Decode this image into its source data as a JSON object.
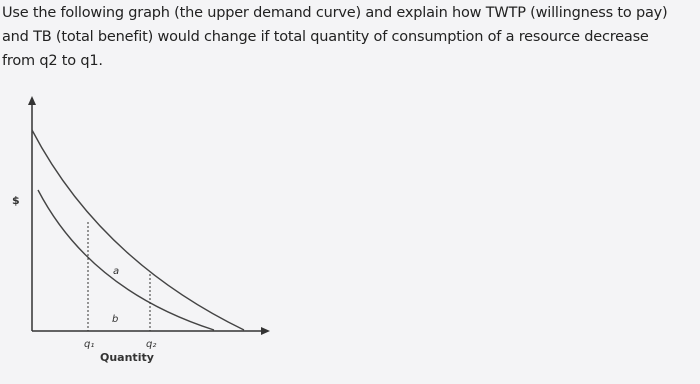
{
  "question": {
    "lines": [
      "Use the following graph (the upper demand curve) and explain how TWTP (willingness to pay)",
      "and TB (total benefit) would change if total quantity of consumption of a resource decrease",
      "from q2 to q1."
    ]
  },
  "graph": {
    "y_label": "$",
    "x_label": "Quantity",
    "area_a": "a",
    "area_b": "b",
    "q1": "q₁",
    "q2": "q₂"
  }
}
